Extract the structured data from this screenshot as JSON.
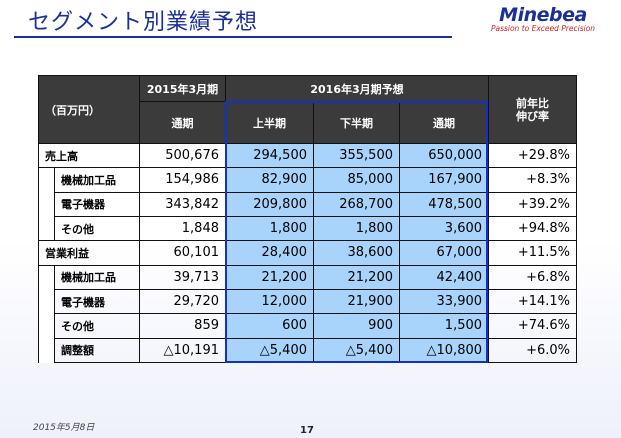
{
  "header": {
    "title": "セグメント別業績予想"
  },
  "logo": {
    "name": "Minebea",
    "tagline": "Passion to Exceed Precision"
  },
  "table": {
    "unit_label": "（百万円）",
    "col_groups": {
      "fy2015": "2015年3月期",
      "fy2016": "2016年3月期予想"
    },
    "sub_headers": {
      "full_year_actual": "通期",
      "h1": "上半期",
      "h2": "下半期",
      "full_year_forecast": "通期",
      "yoy": "前年比\n伸び率"
    },
    "rows": [
      {
        "label": "売上高",
        "values": [
          "500,676",
          "294,500",
          "355,500",
          "650,000",
          "+29.8%"
        ]
      },
      {
        "label": "機械加工品",
        "values": [
          "154,986",
          "82,900",
          "85,000",
          "167,900",
          "+8.3%"
        ]
      },
      {
        "label": "電子機器",
        "values": [
          "343,842",
          "209,800",
          "268,700",
          "478,500",
          "+39.2%"
        ]
      },
      {
        "label": "その他",
        "values": [
          "1,848",
          "1,800",
          "1,800",
          "3,600",
          "+94.8%"
        ]
      },
      {
        "label": "営業利益",
        "values": [
          "60,101",
          "28,400",
          "38,600",
          "67,000",
          "+11.5%"
        ]
      },
      {
        "label": "機械加工品",
        "values": [
          "39,713",
          "21,200",
          "21,200",
          "42,400",
          "+6.8%"
        ]
      },
      {
        "label": "電子機器",
        "values": [
          "29,720",
          "12,000",
          "21,900",
          "33,900",
          "+14.1%"
        ]
      },
      {
        "label": "その他",
        "values": [
          "859",
          "600",
          "900",
          "1,500",
          "+74.6%"
        ]
      },
      {
        "label": "調整額",
        "values": [
          "△10,191",
          "△5,400",
          "△5,400",
          "△10,800",
          "+6.0%"
        ]
      }
    ]
  },
  "footer": {
    "date": "2015年5月8日",
    "page": "17"
  }
}
